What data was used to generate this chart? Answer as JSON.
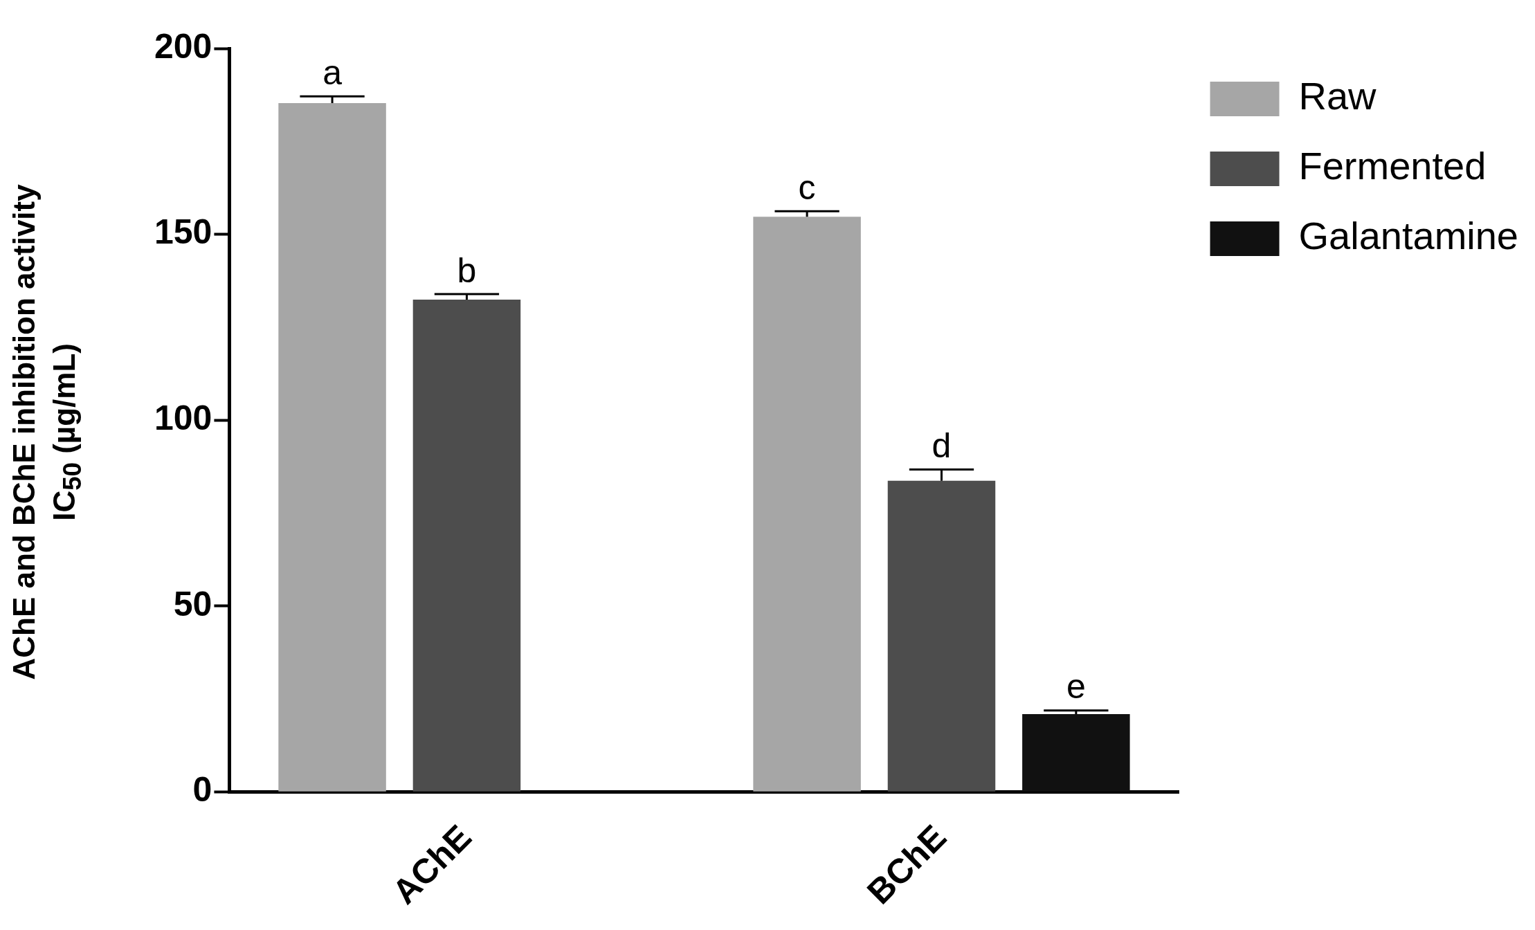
{
  "chart_data": {
    "type": "bar",
    "categories": [
      "AChE",
      "BChE"
    ],
    "ylabel": "AChE and BChE inhibition activity\nIC$_{50}$ (µg/mL)",
    "ylim": [
      0,
      200
    ],
    "yticks": [
      0,
      50,
      100,
      150,
      200
    ],
    "series": [
      {
        "name": "Raw",
        "color": "#a6a6a6",
        "values": [
          185.3,
          154.7
        ],
        "errors": [
          1.8,
          1.5
        ]
      },
      {
        "name": "Fermented",
        "color": "#4d4d4d",
        "values": [
          132.4,
          83.7
        ],
        "errors": [
          1.5,
          3
        ]
      },
      {
        "name": "Galantamine",
        "color": "#111111",
        "values": [
          null,
          20.9
        ],
        "errors": [
          null,
          1
        ]
      }
    ],
    "annotations": [
      "a",
      "b",
      "c",
      "d",
      "e"
    ],
    "legend": "top right",
    "grid": false
  }
}
